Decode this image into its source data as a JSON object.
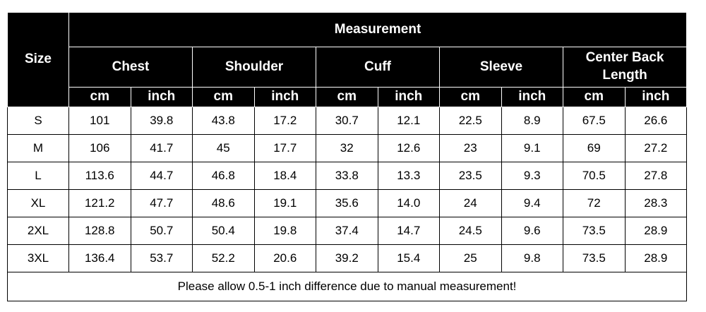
{
  "table": {
    "size_header": "Size",
    "title": "Measurement",
    "groups": [
      {
        "name": "Chest",
        "units": [
          "cm",
          "inch"
        ]
      },
      {
        "name": "Shoulder",
        "units": [
          "cm",
          "inch"
        ]
      },
      {
        "name": "Cuff",
        "units": [
          "cm",
          "inch"
        ]
      },
      {
        "name": "Sleeve",
        "units": [
          "cm",
          "inch"
        ]
      },
      {
        "name": "Center Back Length",
        "units": [
          "cm",
          "inch"
        ]
      }
    ],
    "rows": [
      [
        "S",
        "101",
        "39.8",
        "43.8",
        "17.2",
        "30.7",
        "12.1",
        "22.5",
        "8.9",
        "67.5",
        "26.6"
      ],
      [
        "M",
        "106",
        "41.7",
        "45",
        "17.7",
        "32",
        "12.6",
        "23",
        "9.1",
        "69",
        "27.2"
      ],
      [
        "L",
        "113.6",
        "44.7",
        "46.8",
        "18.4",
        "33.8",
        "13.3",
        "23.5",
        "9.3",
        "70.5",
        "27.8"
      ],
      [
        "XL",
        "121.2",
        "47.7",
        "48.6",
        "19.1",
        "35.6",
        "14.0",
        "24",
        "9.4",
        "72",
        "28.3"
      ],
      [
        "2XL",
        "128.8",
        "50.7",
        "50.4",
        "19.8",
        "37.4",
        "14.7",
        "24.5",
        "9.6",
        "73.5",
        "28.9"
      ],
      [
        "3XL",
        "136.4",
        "53.7",
        "52.2",
        "20.6",
        "39.2",
        "15.4",
        "25",
        "9.8",
        "73.5",
        "28.9"
      ]
    ],
    "note": "Please allow 0.5-1 inch difference due to manual measurement!"
  }
}
